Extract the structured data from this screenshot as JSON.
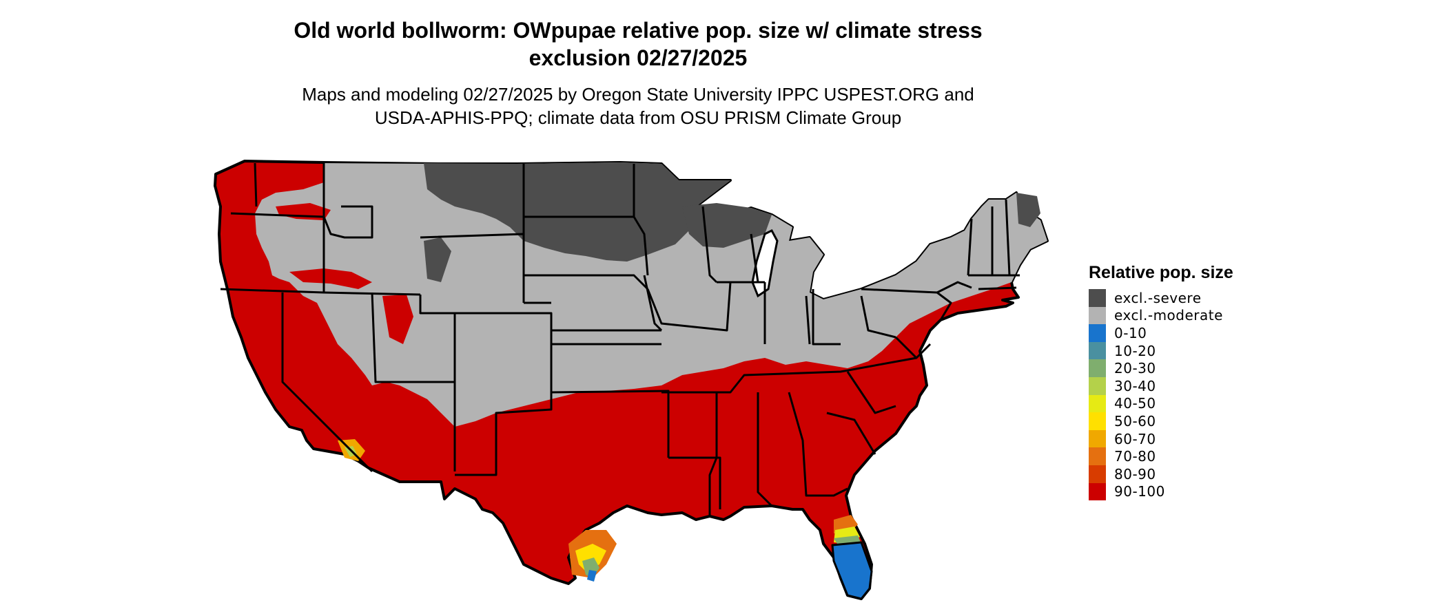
{
  "title_line1": "Old world bollworm: OWpupae relative pop. size w/ climate stress",
  "title_line2": "exclusion 02/27/2025",
  "subtitle_line1": "Maps and modeling 02/27/2025 by Oregon State University IPPC USPEST.ORG and",
  "subtitle_line2": "USDA-APHIS-PPQ; climate data from OSU PRISM Climate Group",
  "legend": {
    "title": "Relative pop. size",
    "items": [
      {
        "label": "excl.-severe",
        "color": "#4d4d4d"
      },
      {
        "label": "excl.-moderate",
        "color": "#b3b3b3"
      },
      {
        "label": "0-10",
        "color": "#1874cd"
      },
      {
        "label": "10-20",
        "color": "#4a90a0"
      },
      {
        "label": "20-30",
        "color": "#7fae6e"
      },
      {
        "label": "30-40",
        "color": "#b4d14a"
      },
      {
        "label": "40-50",
        "color": "#e6ea14"
      },
      {
        "label": "50-60",
        "color": "#ffe000"
      },
      {
        "label": "60-70",
        "color": "#f0a800"
      },
      {
        "label": "70-80",
        "color": "#e57010"
      },
      {
        "label": "80-90",
        "color": "#d83c00"
      },
      {
        "label": "90-100",
        "color": "#cc0000"
      }
    ]
  }
}
